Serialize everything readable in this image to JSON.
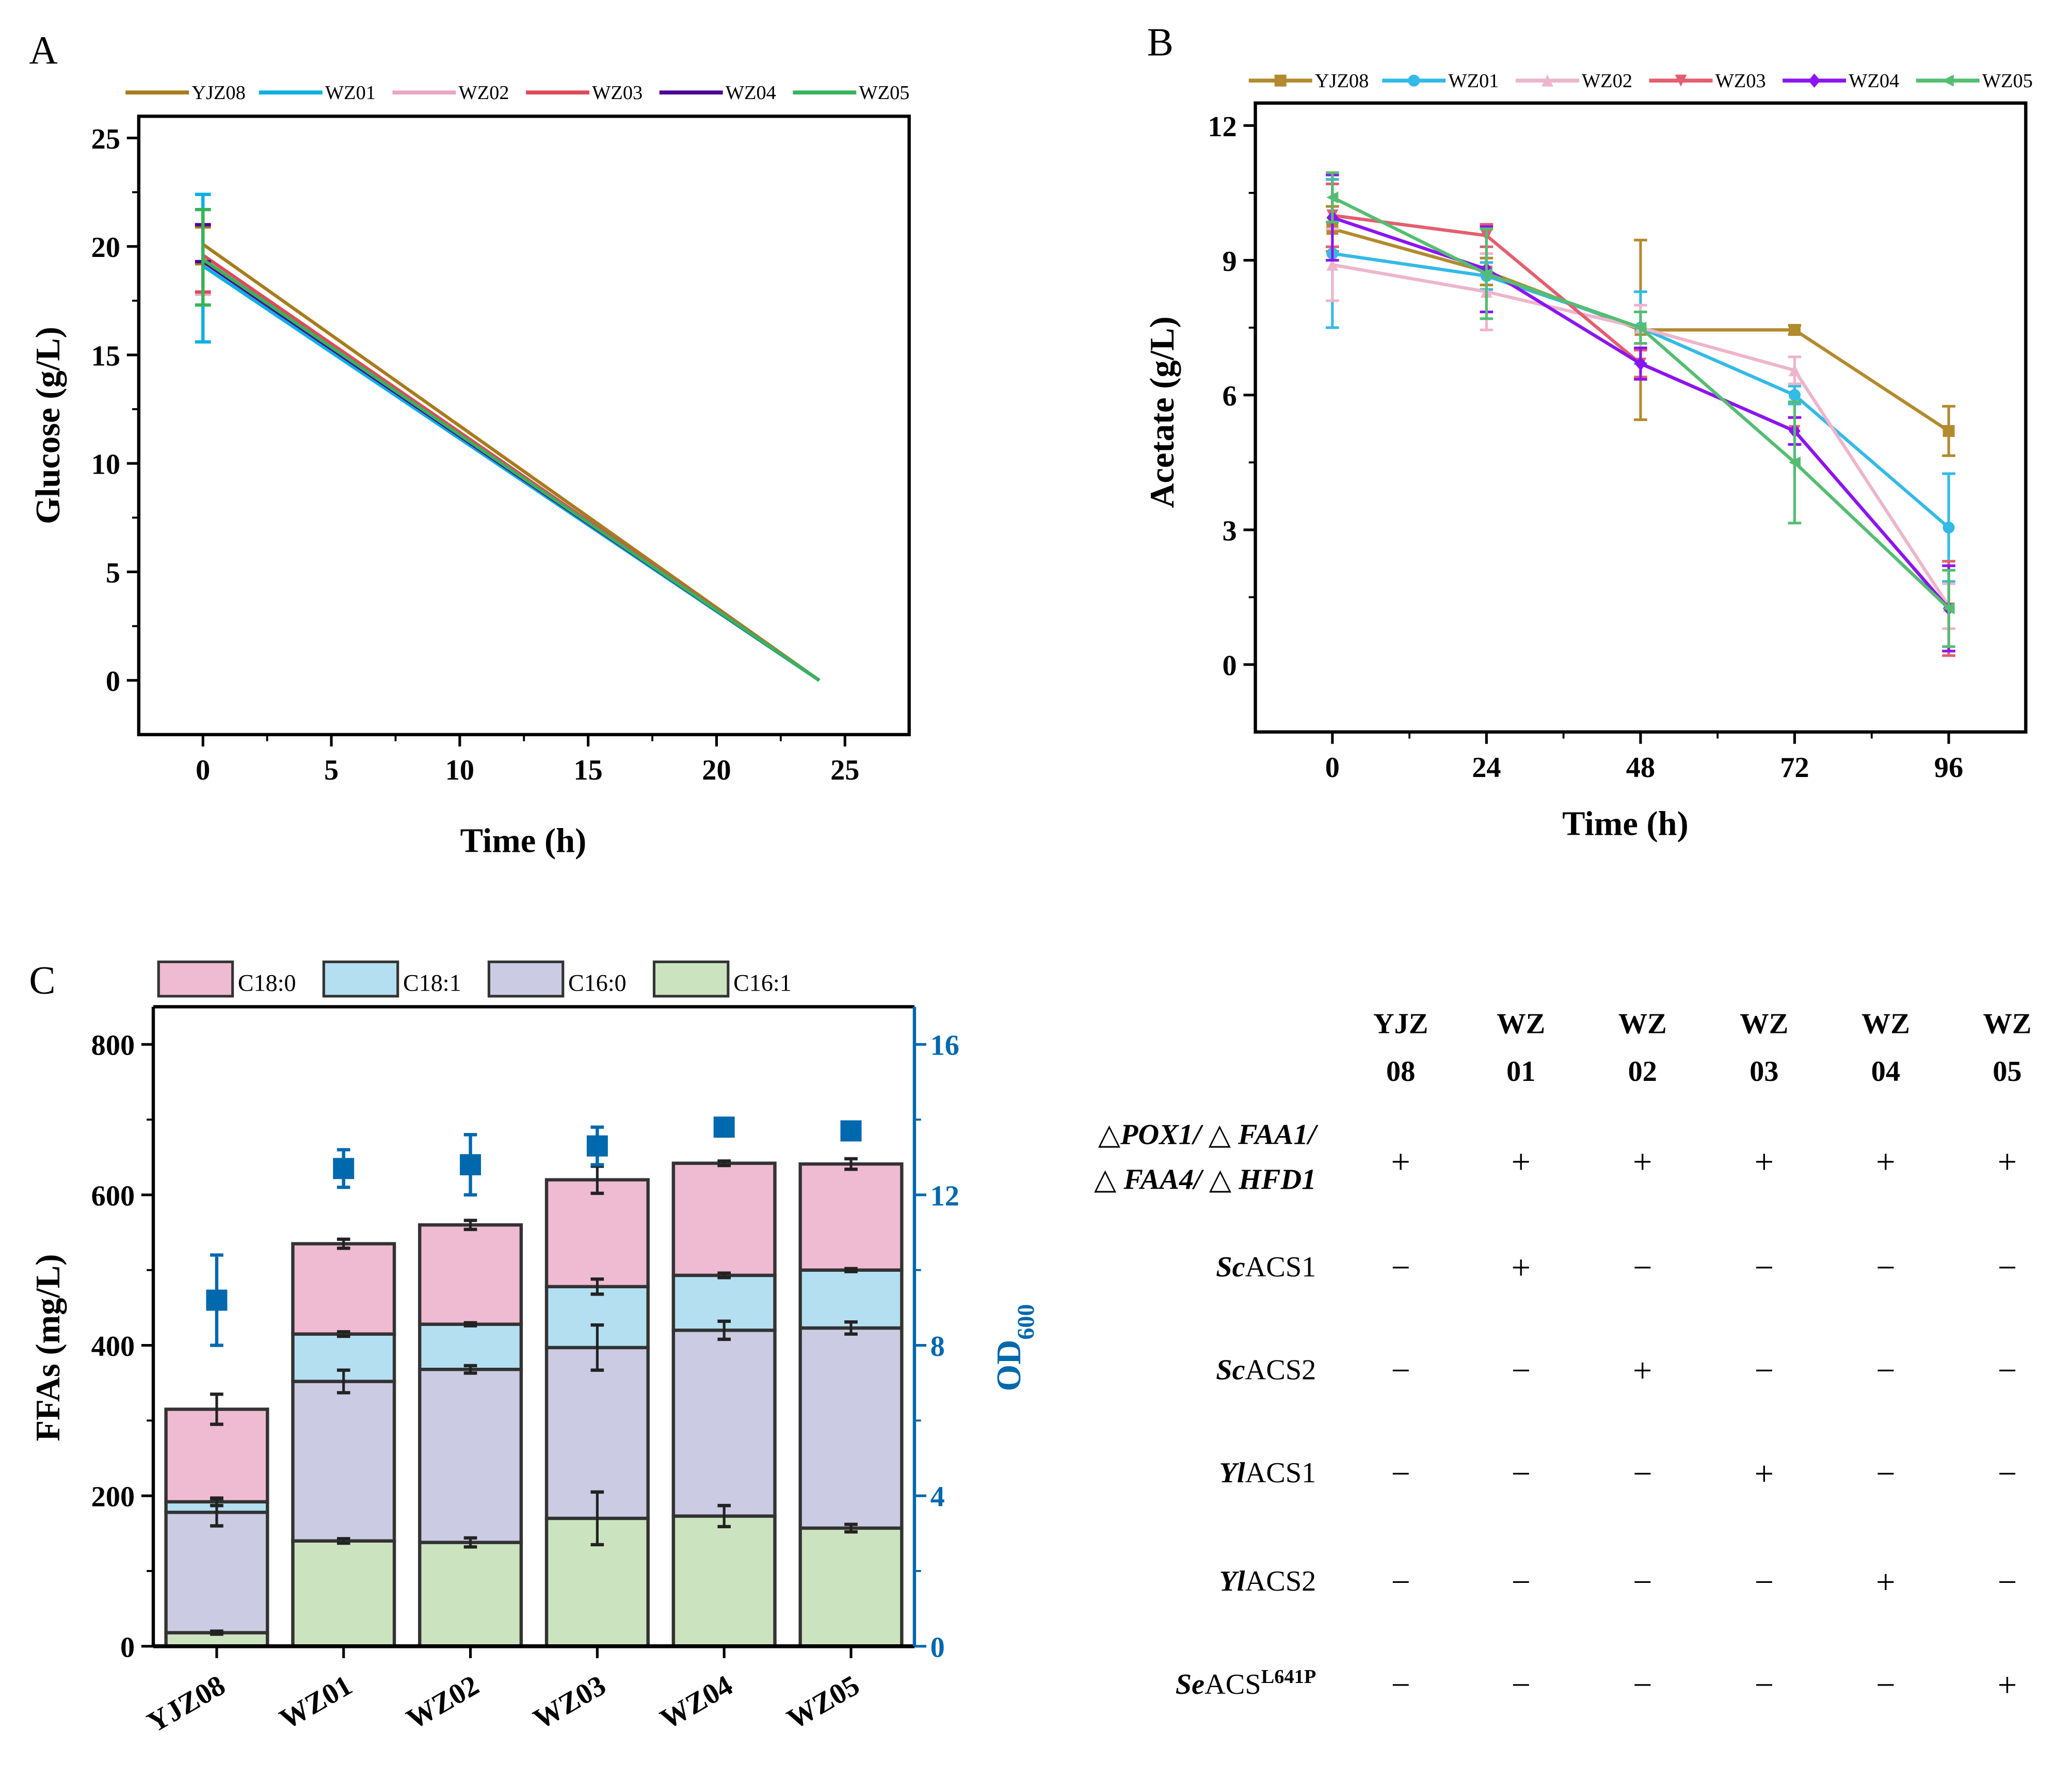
{
  "strains": [
    "YJZ08",
    "WZ01",
    "WZ02",
    "WZ03",
    "WZ04",
    "WZ05"
  ],
  "series_colors": {
    "YJZ08": "#A67C1C",
    "WZ01": "#0BB0E3",
    "WZ02": "#EAA6C4",
    "WZ03": "#DE4A5A",
    "WZ04": "#4A0096",
    "WZ05": "#38B35A"
  },
  "series_colors_b": {
    "YJZ08": "#B38A2E",
    "WZ01": "#33BAE6",
    "WZ02": "#EDB5CC",
    "WZ03": "#E35F6E",
    "WZ04": "#8C14F2",
    "WZ05": "#55BD72"
  },
  "chart_data": [
    {
      "id": "A",
      "panel_label": "A",
      "type": "line",
      "title": "",
      "xlabel": "Time (h)",
      "ylabel": "Glucose (g/L)",
      "xlim": [
        -2.5,
        27.5
      ],
      "ylim": [
        -2.5,
        26
      ],
      "xticks": [
        0,
        5,
        10,
        15,
        20,
        25
      ],
      "yticks": [
        0,
        5,
        10,
        15,
        20,
        25
      ],
      "legend": {
        "position": "top",
        "entries": [
          "YJZ08",
          "WZ01",
          "WZ02",
          "WZ03",
          "WZ04",
          "WZ05"
        ]
      },
      "x": [
        0,
        24
      ],
      "series": [
        {
          "name": "YJZ08",
          "values": [
            20.1,
            0
          ],
          "err_low": [
            19.2,
            null
          ],
          "err_high": [
            20.9,
            null
          ]
        },
        {
          "name": "WZ01",
          "values": [
            19.1,
            0
          ],
          "err_low": [
            15.6,
            null
          ],
          "err_high": [
            22.4,
            null
          ]
        },
        {
          "name": "WZ02",
          "values": [
            19.4,
            0
          ],
          "err_low": [
            17.8,
            null
          ],
          "err_high": [
            21.0,
            null
          ]
        },
        {
          "name": "WZ03",
          "values": [
            19.6,
            0
          ],
          "err_low": [
            17.9,
            null
          ],
          "err_high": [
            21.0,
            null
          ]
        },
        {
          "name": "WZ04",
          "values": [
            19.3,
            0
          ],
          "err_low": [
            19.3,
            null
          ],
          "err_high": [
            21.0,
            null
          ]
        },
        {
          "name": "WZ05",
          "values": [
            19.4,
            0
          ],
          "err_low": [
            17.3,
            null
          ],
          "err_high": [
            21.7,
            null
          ]
        }
      ]
    },
    {
      "id": "B",
      "panel_label": "B",
      "type": "line",
      "title": "",
      "xlabel": "Time (h)",
      "ylabel": "Acetate (g/L)",
      "xlim": [
        -12,
        108
      ],
      "ylim": [
        -1.5,
        12.5
      ],
      "xticks": [
        0,
        24,
        48,
        72,
        96
      ],
      "yticks": [
        0,
        3,
        6,
        9,
        12
      ],
      "legend": {
        "position": "top",
        "entries": [
          "YJZ08",
          "WZ01",
          "WZ02",
          "WZ03",
          "WZ04",
          "WZ05"
        ]
      },
      "markers": {
        "YJZ08": "square",
        "WZ01": "circle",
        "WZ02": "triangle-up",
        "WZ03": "triangle-down",
        "WZ04": "diamond",
        "WZ05": "triangle-left"
      },
      "x": [
        0,
        24,
        48,
        72,
        96
      ],
      "series": [
        {
          "name": "YJZ08",
          "values": [
            9.7,
            8.75,
            7.45,
            7.45,
            5.2
          ],
          "err": [
            0.5,
            0.3,
            2.0,
            0.1,
            0.55
          ]
        },
        {
          "name": "WZ01",
          "values": [
            9.15,
            8.65,
            7.5,
            6.0,
            3.05
          ],
          "err": [
            1.65,
            0.3,
            0.8,
            0.2,
            1.2
          ]
        },
        {
          "name": "WZ02",
          "values": [
            8.9,
            8.3,
            7.5,
            6.55,
            1.3
          ],
          "err": [
            0.8,
            0.85,
            0.5,
            0.3,
            0.5
          ]
        },
        {
          "name": "WZ03",
          "values": [
            10.0,
            9.55,
            6.7,
            5.2,
            1.25
          ],
          "err": [
            0.7,
            0.25,
            0.3,
            0.3,
            1.05
          ]
        },
        {
          "name": "WZ04",
          "values": [
            9.95,
            8.8,
            6.7,
            5.2,
            1.25
          ],
          "err": [
            0.95,
            0.95,
            0.35,
            0.3,
            0.95
          ]
        },
        {
          "name": "WZ05",
          "values": [
            10.4,
            8.7,
            7.5,
            4.5,
            1.25
          ],
          "err": [
            0.55,
            1.0,
            0.35,
            1.35,
            0.85
          ]
        }
      ]
    },
    {
      "id": "C",
      "panel_label": "C",
      "type": "bar",
      "stacked": true,
      "title": "",
      "xlabel": "",
      "ylabel": "FFAs (mg/L)",
      "ylabel_right": "OD",
      "ylabel_right_sub": "600",
      "categories": [
        "YJZ08",
        "WZ01",
        "WZ02",
        "WZ03",
        "WZ04",
        "WZ05"
      ],
      "ylim": [
        0,
        850
      ],
      "yticks": [
        0,
        200,
        400,
        600,
        800
      ],
      "ylim_right": [
        0,
        17
      ],
      "yticks_right": [
        0,
        4,
        8,
        12,
        16
      ],
      "legend": {
        "position": "top",
        "entries": [
          "C18:0",
          "C18:1",
          "C16:0",
          "C16:1"
        ]
      },
      "series": [
        {
          "name": "C16:1",
          "color": "#CCE3C0",
          "values": [
            18,
            140,
            138,
            170,
            173,
            157
          ],
          "err": [
            2,
            3,
            6,
            35,
            14,
            5
          ]
        },
        {
          "name": "C16:0",
          "color": "#CBCBE3",
          "values": [
            160,
            212,
            230,
            227,
            247,
            266
          ],
          "err": [
            18,
            15,
            5,
            30,
            12,
            8
          ]
        },
        {
          "name": "C18:1",
          "color": "#B3DFF1",
          "values": [
            14,
            63,
            60,
            81,
            73,
            77
          ],
          "err": [
            5,
            3,
            2,
            10,
            3,
            2
          ]
        },
        {
          "name": "C18:0",
          "color": "#EFBBD2",
          "values": [
            123,
            120,
            132,
            142,
            149,
            141
          ],
          "err": [
            20,
            6,
            6,
            18,
            3,
            7
          ]
        }
      ],
      "od600": {
        "name": "OD600",
        "color": "#0068AD",
        "values": [
          9.2,
          12.7,
          12.8,
          13.3,
          13.8,
          13.7
        ],
        "err": [
          1.2,
          0.5,
          0.8,
          0.5,
          0.15,
          0.15
        ]
      }
    }
  ],
  "table": {
    "columns": [
      {
        "line1": "YJZ",
        "line2": "08"
      },
      {
        "line1": "WZ",
        "line2": "01"
      },
      {
        "line1": "WZ",
        "line2": "02"
      },
      {
        "line1": "WZ",
        "line2": "03"
      },
      {
        "line1": "WZ",
        "line2": "04"
      },
      {
        "line1": "WZ",
        "line2": "05"
      }
    ],
    "rows": [
      {
        "label_line1": "△POX1/ △ FAA1/",
        "label_line2": "△ FAA4/ △ HFD1",
        "values": [
          "+",
          "+",
          "+",
          "+",
          "+",
          "+"
        ]
      },
      {
        "label_italic": "Sc",
        "label_rest": "ACS1",
        "values": [
          "−",
          "+",
          "−",
          "−",
          "−",
          "−"
        ]
      },
      {
        "label_italic": "Sc",
        "label_rest": "ACS2",
        "values": [
          "−",
          "−",
          "+",
          "−",
          "−",
          "−"
        ]
      },
      {
        "label_italic": "Yl",
        "label_rest": "ACS1",
        "values": [
          "−",
          "−",
          "−",
          "+",
          "−",
          "−"
        ]
      },
      {
        "label_italic": "Yl",
        "label_rest": "ACS2",
        "values": [
          "−",
          "−",
          "−",
          "−",
          "+",
          "−"
        ]
      },
      {
        "label_italic": "Se",
        "label_rest": "ACS",
        "label_sup": "L641P",
        "values": [
          "−",
          "−",
          "−",
          "−",
          "−",
          "+"
        ]
      }
    ]
  }
}
